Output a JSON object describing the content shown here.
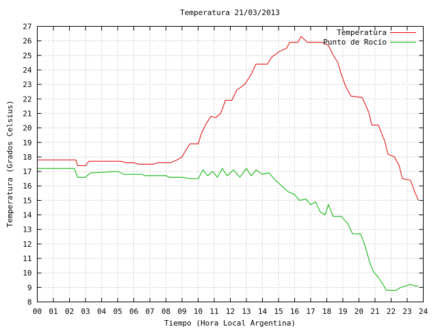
{
  "chart_data": {
    "type": "line",
    "title": "Temperatura 21/03/2013",
    "xlabel": "Tiempo (Hora Local Argentina)",
    "ylabel": "Temperatura (Grados Celsius)",
    "xlim": [
      0,
      24
    ],
    "ylim": [
      8,
      27
    ],
    "x_ticks": [
      "00",
      "01",
      "02",
      "03",
      "04",
      "05",
      "06",
      "07",
      "08",
      "09",
      "10",
      "11",
      "12",
      "13",
      "14",
      "15",
      "16",
      "17",
      "18",
      "19",
      "20",
      "21",
      "22",
      "23",
      "24"
    ],
    "y_ticks": [
      8,
      9,
      10,
      11,
      12,
      13,
      14,
      15,
      16,
      17,
      18,
      19,
      20,
      21,
      22,
      23,
      24,
      25,
      26,
      27
    ],
    "grid": true,
    "legend_position": "top-right",
    "series": [
      {
        "name": "Temperatura",
        "color": "#e00000",
        "points": [
          [
            0.0,
            17.8
          ],
          [
            2.4,
            17.8
          ],
          [
            2.5,
            17.4
          ],
          [
            3.0,
            17.4
          ],
          [
            3.2,
            17.7
          ],
          [
            5.2,
            17.7
          ],
          [
            5.5,
            17.6
          ],
          [
            6.0,
            17.6
          ],
          [
            6.3,
            17.5
          ],
          [
            7.2,
            17.5
          ],
          [
            7.5,
            17.6
          ],
          [
            8.3,
            17.6
          ],
          [
            8.7,
            17.8
          ],
          [
            9.0,
            18.0
          ],
          [
            9.2,
            18.4
          ],
          [
            9.5,
            18.9
          ],
          [
            10.0,
            18.9
          ],
          [
            10.2,
            19.6
          ],
          [
            10.5,
            20.3
          ],
          [
            10.8,
            20.8
          ],
          [
            11.1,
            20.7
          ],
          [
            11.4,
            21.0
          ],
          [
            11.7,
            21.9
          ],
          [
            12.1,
            21.9
          ],
          [
            12.4,
            22.6
          ],
          [
            12.9,
            23.0
          ],
          [
            13.3,
            23.7
          ],
          [
            13.6,
            24.4
          ],
          [
            14.3,
            24.4
          ],
          [
            14.6,
            24.9
          ],
          [
            15.1,
            25.3
          ],
          [
            15.5,
            25.5
          ],
          [
            15.7,
            25.9
          ],
          [
            16.2,
            25.9
          ],
          [
            16.4,
            26.3
          ],
          [
            16.8,
            25.9
          ],
          [
            17.7,
            25.9
          ],
          [
            18.1,
            25.7
          ],
          [
            18.4,
            25.0
          ],
          [
            18.7,
            24.5
          ],
          [
            18.9,
            23.7
          ],
          [
            19.2,
            22.8
          ],
          [
            19.5,
            22.2
          ],
          [
            20.2,
            22.1
          ],
          [
            20.6,
            21.1
          ],
          [
            20.8,
            20.2
          ],
          [
            21.2,
            20.2
          ],
          [
            21.6,
            19.1
          ],
          [
            21.8,
            18.2
          ],
          [
            22.2,
            18.0
          ],
          [
            22.5,
            17.4
          ],
          [
            22.7,
            16.5
          ],
          [
            23.2,
            16.4
          ],
          [
            23.5,
            15.5
          ],
          [
            23.7,
            15.0
          ]
        ]
      },
      {
        "name": "Punto de Rocío",
        "color": "#00b000",
        "points": [
          [
            0.0,
            17.2
          ],
          [
            2.3,
            17.2
          ],
          [
            2.5,
            16.6
          ],
          [
            3.0,
            16.6
          ],
          [
            3.3,
            16.9
          ],
          [
            5.0,
            17.0
          ],
          [
            5.4,
            16.8
          ],
          [
            6.5,
            16.8
          ],
          [
            6.7,
            16.7
          ],
          [
            8.0,
            16.7
          ],
          [
            8.2,
            16.6
          ],
          [
            9.0,
            16.6
          ],
          [
            9.5,
            16.5
          ],
          [
            10.0,
            16.5
          ],
          [
            10.3,
            17.1
          ],
          [
            10.6,
            16.7
          ],
          [
            10.9,
            17.0
          ],
          [
            11.2,
            16.6
          ],
          [
            11.5,
            17.2
          ],
          [
            11.8,
            16.7
          ],
          [
            12.2,
            17.1
          ],
          [
            12.6,
            16.6
          ],
          [
            13.0,
            17.2
          ],
          [
            13.3,
            16.7
          ],
          [
            13.6,
            17.1
          ],
          [
            14.0,
            16.8
          ],
          [
            14.4,
            16.9
          ],
          [
            14.8,
            16.4
          ],
          [
            15.2,
            16.0
          ],
          [
            15.6,
            15.6
          ],
          [
            16.0,
            15.4
          ],
          [
            16.3,
            15.0
          ],
          [
            16.7,
            15.1
          ],
          [
            17.0,
            14.7
          ],
          [
            17.3,
            14.9
          ],
          [
            17.6,
            14.2
          ],
          [
            17.9,
            14.0
          ],
          [
            18.1,
            14.7
          ],
          [
            18.4,
            13.9
          ],
          [
            18.9,
            13.9
          ],
          [
            19.3,
            13.4
          ],
          [
            19.6,
            12.7
          ],
          [
            20.1,
            12.7
          ],
          [
            20.4,
            11.8
          ],
          [
            20.7,
            10.6
          ],
          [
            20.9,
            10.1
          ],
          [
            21.2,
            9.7
          ],
          [
            21.5,
            9.2
          ],
          [
            21.7,
            8.8
          ],
          [
            22.0,
            8.8
          ],
          [
            22.3,
            8.8
          ],
          [
            22.6,
            9.0
          ],
          [
            22.9,
            9.1
          ],
          [
            23.2,
            9.2
          ],
          [
            23.5,
            9.1
          ],
          [
            23.7,
            9.1
          ]
        ]
      }
    ]
  }
}
